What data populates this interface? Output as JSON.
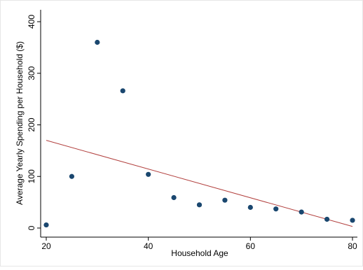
{
  "chart_data": {
    "type": "scatter",
    "title": "",
    "xlabel": "Household Age",
    "ylabel": "Average Yearly Spending per Household ($)",
    "xlim": [
      20,
      80
    ],
    "ylim": [
      0,
      400
    ],
    "x_ticks": [
      20,
      40,
      60,
      80
    ],
    "y_ticks": [
      0,
      100,
      200,
      300,
      400
    ],
    "x_tick_labels": [
      "20",
      "40",
      "60",
      "80"
    ],
    "y_tick_labels": [
      "0",
      "100",
      "200",
      "300",
      "400"
    ],
    "grid": false,
    "legend": "none",
    "series": [
      {
        "x": [
          20,
          25,
          30,
          35,
          40,
          45,
          50,
          55,
          60,
          65,
          70,
          75,
          80
        ],
        "y": [
          6,
          100,
          360,
          266,
          104,
          59,
          45,
          54,
          40,
          37,
          31,
          17,
          15
        ],
        "color": "#1a476f"
      }
    ],
    "fit_line": {
      "x": [
        20,
        80
      ],
      "y": [
        170,
        3
      ],
      "color": "#b2403e"
    }
  },
  "colors": {
    "background": "#ffffff",
    "plot_background": "#ffffff",
    "marker": "#1a476f",
    "fit_line": "#b2403e",
    "axis": "#000000"
  }
}
